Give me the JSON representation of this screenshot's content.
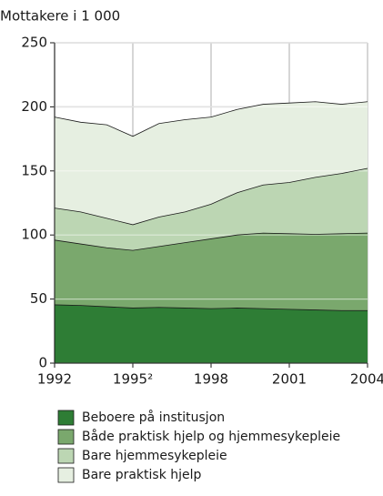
{
  "chart_data": {
    "type": "stacked_area",
    "y_axis_label": "Mottakere i 1 000",
    "x": [
      1992,
      1993,
      1994,
      1995,
      1996,
      1997,
      1998,
      1999,
      2000,
      2001,
      2002,
      2003,
      2004
    ],
    "xlim": [
      1992,
      2004
    ],
    "xticks": [
      1992,
      {
        "value": 1995,
        "label": "1995²"
      },
      1998,
      2001,
      2004
    ],
    "ylim": [
      0,
      250
    ],
    "yticks": [
      0,
      50,
      100,
      150,
      200,
      250
    ],
    "grid": true,
    "series": [
      {
        "name": "Beboere på institusjon",
        "color": "#2e7d35",
        "values": [
          45.5,
          45,
          44,
          43,
          43.5,
          43,
          42.5,
          43,
          42.5,
          42,
          41.5,
          41,
          41
        ]
      },
      {
        "name": "Både praktisk hjelp og hjemmesykepleie",
        "color": "#7aa86d",
        "values": [
          50.5,
          48,
          46,
          45,
          47.5,
          51,
          54.5,
          57,
          59,
          59,
          59,
          60,
          60.5
        ]
      },
      {
        "name": "Bare hjemmesykepleie",
        "color": "#bcd6b3",
        "values": [
          25,
          25,
          23,
          20,
          23,
          24,
          27,
          33,
          37.5,
          40,
          44.5,
          47,
          50.5
        ]
      },
      {
        "name": "Bare praktisk hjelp",
        "color": "#e6efe1",
        "values": [
          71,
          70,
          73,
          69,
          73,
          72,
          68,
          65,
          63,
          62,
          59,
          54,
          52
        ]
      }
    ]
  }
}
